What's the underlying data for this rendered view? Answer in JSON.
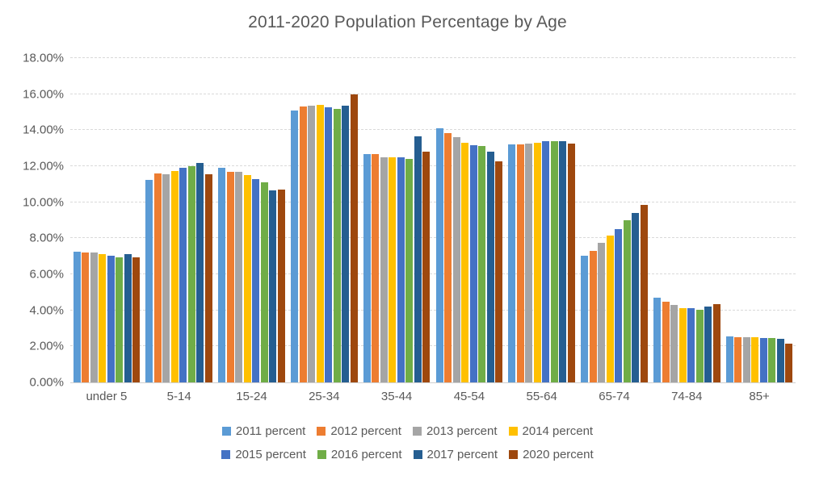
{
  "chart_data": {
    "type": "bar",
    "title": "2011-2020 Population Percentage by Age",
    "xlabel": "",
    "ylabel": "",
    "ylim": [
      0,
      18
    ],
    "ytick_step": 2,
    "ytick_labels": [
      "0.00%",
      "2.00%",
      "4.00%",
      "6.00%",
      "8.00%",
      "10.00%",
      "12.00%",
      "14.00%",
      "16.00%",
      "18.00%"
    ],
    "grid": "horizontal-dashed",
    "gridline_color": "#d9d9d9",
    "legend_position": "bottom",
    "legend_items_per_row": 4,
    "categories": [
      "under 5",
      "5-14",
      "15-24",
      "25-34",
      "35-44",
      "45-54",
      "55-64",
      "65-74",
      "74-84",
      "85+"
    ],
    "series": [
      {
        "name": "2011 percent",
        "color": "#5B9BD5",
        "values": [
          7.25,
          11.25,
          11.9,
          15.1,
          12.65,
          14.1,
          13.2,
          7.05,
          4.7,
          2.55
        ]
      },
      {
        "name": "2012 percent",
        "color": "#ED7D31",
        "values": [
          7.2,
          11.6,
          11.7,
          15.3,
          12.65,
          13.85,
          13.2,
          7.3,
          4.5,
          2.5
        ]
      },
      {
        "name": "2013 percent",
        "color": "#A5A5A5",
        "values": [
          7.2,
          11.55,
          11.7,
          15.35,
          12.5,
          13.6,
          13.25,
          7.75,
          4.3,
          2.5
        ]
      },
      {
        "name": "2014 percent",
        "color": "#FFC000",
        "values": [
          7.1,
          11.75,
          11.5,
          15.4,
          12.5,
          13.3,
          13.3,
          8.15,
          4.1,
          2.5
        ]
      },
      {
        "name": "2015 percent",
        "color": "#4472C4",
        "values": [
          7.05,
          11.9,
          11.3,
          15.25,
          12.5,
          13.15,
          13.4,
          8.5,
          4.1,
          2.45
        ]
      },
      {
        "name": "2016 percent",
        "color": "#70AD47",
        "values": [
          6.95,
          12.0,
          11.1,
          15.2,
          12.4,
          13.1,
          13.4,
          9.0,
          4.05,
          2.45
        ]
      },
      {
        "name": "2017 percent",
        "color": "#255E91",
        "values": [
          7.1,
          12.2,
          10.65,
          15.35,
          13.65,
          12.8,
          13.4,
          9.4,
          4.2,
          2.4
        ]
      },
      {
        "name": "2020 percent",
        "color": "#9E480E",
        "values": [
          6.95,
          11.55,
          10.7,
          16.0,
          12.8,
          12.25,
          13.25,
          9.85,
          4.35,
          2.15
        ]
      }
    ]
  }
}
